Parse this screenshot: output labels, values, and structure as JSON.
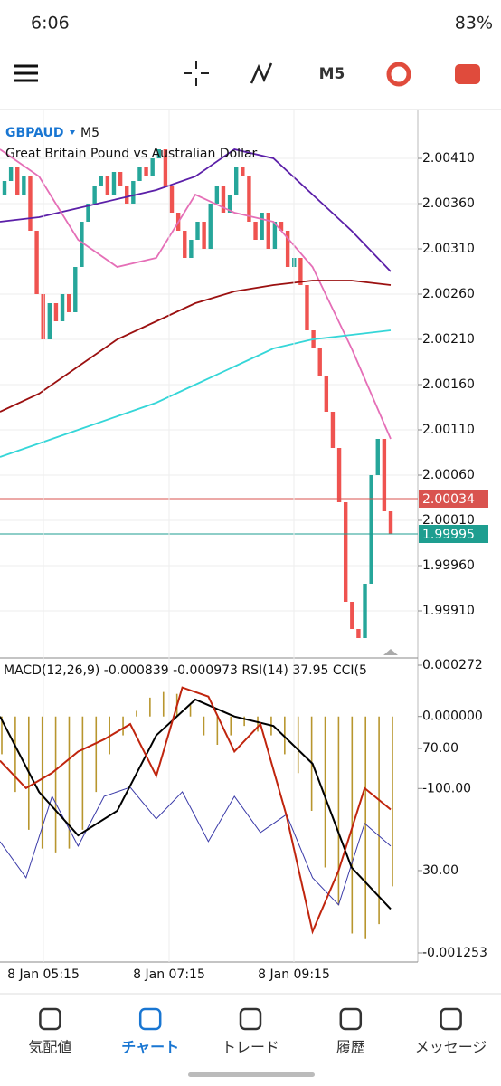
{
  "status_bar": {
    "time": "6:06",
    "battery": "83%"
  },
  "toolbar": {
    "timeframe": "M5"
  },
  "chart_data": [
    {
      "type": "candlestick",
      "symbol": "GBPAUD",
      "timeframe": "M5",
      "title": "Great Britain Pound vs Australian Dollar",
      "open_first": 2.0037,
      "close": [
        2.00385,
        2.004,
        2.0037,
        2.0039,
        2.0033,
        2.0026,
        2.0021,
        2.0025,
        2.0023,
        2.0026,
        2.0024,
        2.0029,
        2.0034,
        2.0036,
        2.0038,
        2.0039,
        2.0037,
        2.00395,
        2.0038,
        2.0036,
        2.00385,
        2.004,
        2.0039,
        2.0041,
        2.0042,
        2.0038,
        2.0035,
        2.0033,
        2.003,
        2.0032,
        2.0034,
        2.0031,
        2.0036,
        2.0038,
        2.0035,
        2.0037,
        2.004,
        2.0039,
        2.0034,
        2.0032,
        2.0035,
        2.0031,
        2.0034,
        2.0033,
        2.0029,
        2.003,
        2.0027,
        2.0022,
        2.002,
        2.0017,
        2.0013,
        2.0009,
        2.0003,
        1.9992,
        1.9989,
        1.9988,
        1.9994,
        2.0006,
        2.001,
        2.0002,
        1.99995
      ],
      "up_color": "#26a69a",
      "down_color": "#ef5350",
      "moving_averages": [
        {
          "color": "#5b1fa8",
          "values": [
            2.0034,
            2.00345,
            2.00355,
            2.00365,
            2.00375,
            2.0039,
            2.0042,
            2.0041,
            2.0037,
            2.0033,
            2.00285
          ]
        },
        {
          "color": "#e56fb7",
          "values": [
            2.0042,
            2.0039,
            2.0032,
            2.0029,
            2.003,
            2.0037,
            2.0035,
            2.0034,
            2.0029,
            2.002,
            2.001
          ]
        },
        {
          "color": "#9b1010",
          "values": [
            2.0013,
            2.0015,
            2.0018,
            2.0021,
            2.0023,
            2.0025,
            2.00263,
            2.0027,
            2.00275,
            2.00275,
            2.0027
          ]
        },
        {
          "color": "#35d6d8",
          "values": [
            2.0008,
            2.00095,
            2.0011,
            2.00125,
            2.0014,
            2.0016,
            2.0018,
            2.002,
            2.0021,
            2.00215,
            2.0022
          ]
        }
      ],
      "price_lines": [
        {
          "value": 2.00034,
          "color": "#d9534f"
        },
        {
          "value": 1.99995,
          "color": "#1e9e90"
        }
      ],
      "ylim": [
        1.9986,
        2.00463
      ],
      "yticks": [
        {
          "value": 2.0041,
          "label": "2.00410"
        },
        {
          "value": 2.0036,
          "label": "2.00360"
        },
        {
          "value": 2.0031,
          "label": "2.00310"
        },
        {
          "value": 2.0026,
          "label": "2.00260"
        },
        {
          "value": 2.0021,
          "label": "2.00210"
        },
        {
          "value": 2.0016,
          "label": "2.00160"
        },
        {
          "value": 2.0011,
          "label": "2.00110"
        },
        {
          "value": 2.0006,
          "label": "2.00060"
        },
        {
          "value": 2.0001,
          "label": "2.00010"
        },
        {
          "value": 1.9996,
          "label": "1.99960"
        },
        {
          "value": 1.9991,
          "label": "1.99910"
        }
      ],
      "xticks": [
        "8 Jan 05:15",
        "8 Jan 07:15",
        "8 Jan 09:15"
      ]
    },
    {
      "type": "indicator",
      "header": "MACD(12,26,9) -0.000839 -0.000973 RSI(14) 37.95 CCI(5",
      "macd": {
        "ylim": [
          -0.001253,
          0.000272
        ],
        "yticks": [
          0.000272,
          {
            "value": 0,
            "label": "0.000000"
          },
          -0.001253
        ],
        "histogram_color": "#b8962e",
        "histogram": [
          -0.0002,
          -0.0004,
          -0.0006,
          -0.0007,
          -0.00072,
          -0.0007,
          -0.0006,
          -0.0004,
          -0.0002,
          -0.0001,
          3e-05,
          0.0001,
          0.00013,
          0.00012,
          6e-05,
          -0.0001,
          -0.00015,
          -0.0001,
          -5e-05,
          -8e-05,
          -0.0001,
          -0.0002,
          -0.0003,
          -0.0005,
          -0.0008,
          -0.001,
          -0.00115,
          -0.00118,
          -0.0011,
          -0.0009
        ],
        "signal_color": "#000000",
        "signal": [
          0,
          -0.0004,
          -0.00063,
          -0.0005,
          -0.0001,
          9e-05,
          0,
          -5e-05,
          -0.00025,
          -0.0008,
          -0.00102
        ]
      },
      "rsi": {
        "ylim": [
          3,
          97.3
        ],
        "yticks": [
          {
            "value": 70,
            "label": "70.00"
          },
          {
            "value": 30,
            "label": "30.00"
          }
        ],
        "color": "#c0250e",
        "values": [
          66,
          57,
          62,
          69,
          73,
          78,
          61,
          90,
          87,
          69,
          78,
          48,
          10,
          30,
          57,
          50
        ]
      },
      "cci": {
        "ylim": [
          -500,
          200
        ],
        "yticks": [
          {
            "value": -100,
            "label": "-100.00"
          }
        ],
        "color": "#3a3aa8",
        "values": [
          -229,
          -317,
          -119,
          -240,
          -119,
          -97,
          -174,
          -108,
          -229,
          -119,
          -207,
          -163,
          -317,
          -383,
          -185,
          -240
        ]
      }
    }
  ],
  "nav": {
    "items": [
      "気配値",
      "チャート",
      "トレード",
      "履歴",
      "メッセージ"
    ],
    "active": 1,
    "active_color": "#1976d2"
  }
}
